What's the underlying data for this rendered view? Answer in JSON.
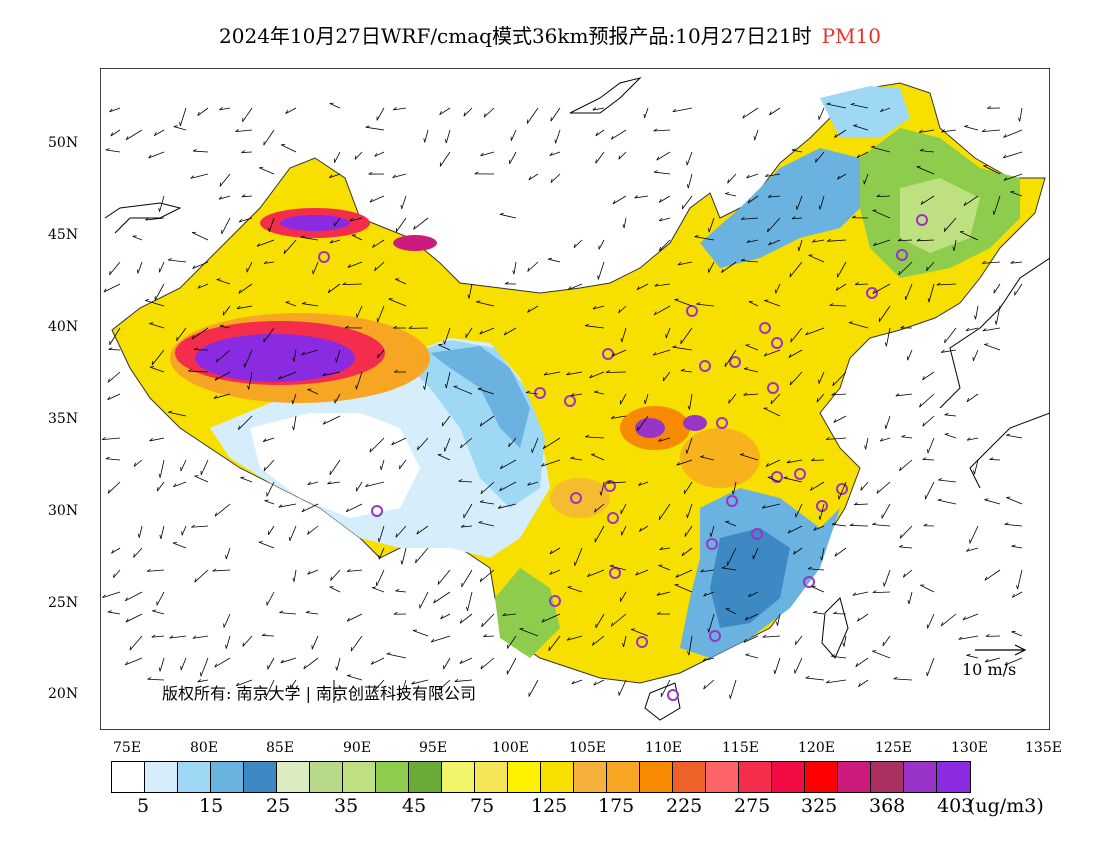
{
  "title": {
    "main": "2024年10月27日WRF/cmaq模式36km预报产品:10月27日21时",
    "pollutant": "PM10"
  },
  "map": {
    "lat_labels": [
      "50N",
      "45N",
      "40N",
      "35N",
      "30N",
      "25N",
      "20N"
    ],
    "lon_labels": [
      "75E",
      "80E",
      "85E",
      "90E",
      "95E",
      "100E",
      "105E",
      "110E",
      "115E",
      "120E",
      "125E",
      "130E",
      "135E"
    ],
    "copyright": "版权所有: 南京大学 | 南京创蓝科技有限公司",
    "wind_reference": "10 m/s"
  },
  "legend": {
    "colors": [
      "#ffffff",
      "#d6eefb",
      "#9fd8f5",
      "#6ab2df",
      "#3d89c4",
      "#dcebc0",
      "#b9d98a",
      "#bee080",
      "#8dcc4c",
      "#6aaa37",
      "#f0f56a",
      "#f3e556",
      "#fff200",
      "#f7df00",
      "#f6b13b",
      "#f6a623",
      "#f78a00",
      "#ee6128",
      "#fd6467",
      "#f42d4c",
      "#f20a45",
      "#ff0000",
      "#cc1a7e",
      "#a93060",
      "#9a34c8",
      "#8a2be2"
    ],
    "labels": [
      "5",
      "15",
      "25",
      "35",
      "45",
      "75",
      "125",
      "175",
      "225",
      "275",
      "325",
      "368",
      "403"
    ],
    "units": "(ug/m3)"
  }
}
